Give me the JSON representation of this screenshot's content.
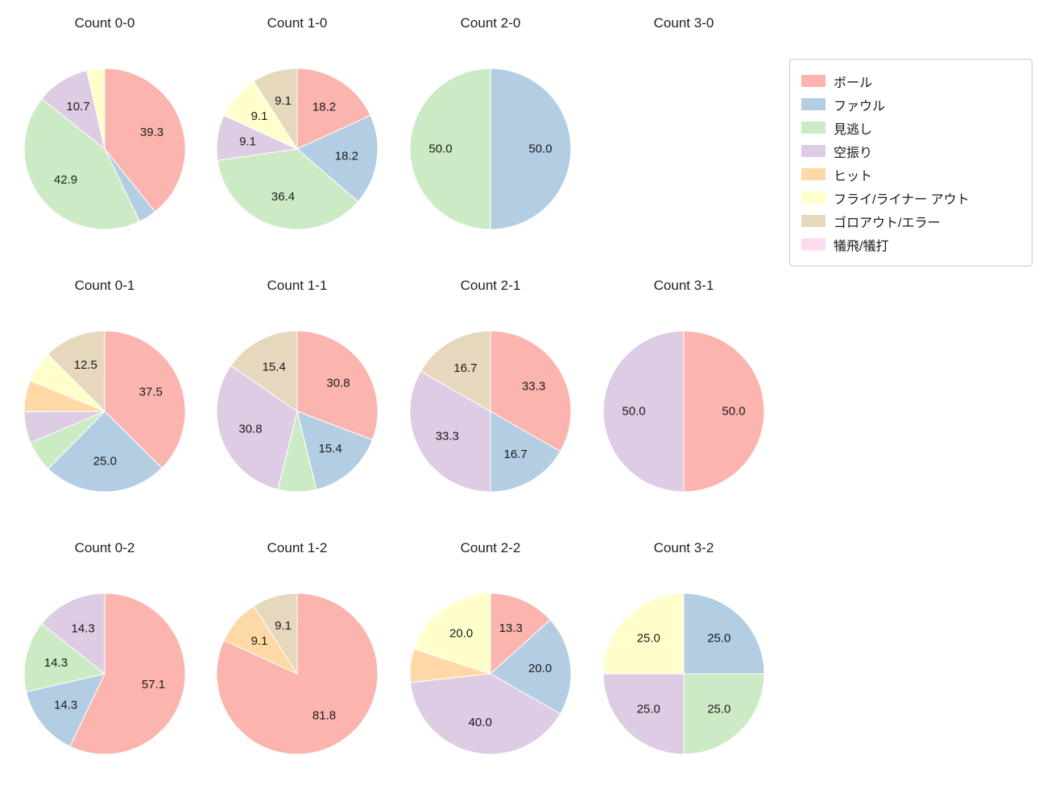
{
  "legend": {
    "items": [
      {
        "label": "ボール",
        "color": "#fbb4ae"
      },
      {
        "label": "ファウル",
        "color": "#b3cde3"
      },
      {
        "label": "見逃し",
        "color": "#ccebc5"
      },
      {
        "label": "空振り",
        "color": "#decbe4"
      },
      {
        "label": "ヒット",
        "color": "#fed9a6"
      },
      {
        "label": "フライ/ライナー アウト",
        "color": "#ffffcc"
      },
      {
        "label": "ゴロアウト/エラー",
        "color": "#e5d8bd"
      },
      {
        "label": "犠飛/犠打",
        "color": "#fddaec"
      }
    ]
  },
  "chart_data": [
    {
      "type": "pie",
      "title": "Count 0-0",
      "slices": [
        {
          "category": "ボール",
          "pct": 39.3,
          "label": "39.3"
        },
        {
          "category": "ファウル",
          "pct": 3.6,
          "label": ""
        },
        {
          "category": "見逃し",
          "pct": 42.9,
          "label": "42.9"
        },
        {
          "category": "空振り",
          "pct": 10.7,
          "label": "10.7"
        },
        {
          "category": "フライ/ライナー アウト",
          "pct": 3.6,
          "label": ""
        }
      ]
    },
    {
      "type": "pie",
      "title": "Count 1-0",
      "slices": [
        {
          "category": "ボール",
          "pct": 18.2,
          "label": "18.2"
        },
        {
          "category": "ファウル",
          "pct": 18.2,
          "label": "18.2"
        },
        {
          "category": "見逃し",
          "pct": 36.4,
          "label": "36.4"
        },
        {
          "category": "空振り",
          "pct": 9.1,
          "label": "9.1"
        },
        {
          "category": "フライ/ライナー アウト",
          "pct": 9.1,
          "label": "9.1"
        },
        {
          "category": "ゴロアウト/エラー",
          "pct": 9.1,
          "label": "9.1"
        }
      ]
    },
    {
      "type": "pie",
      "title": "Count 2-0",
      "slices": [
        {
          "category": "ファウル",
          "pct": 50.0,
          "label": "50.0"
        },
        {
          "category": "見逃し",
          "pct": 50.0,
          "label": "50.0"
        }
      ]
    },
    {
      "type": "pie",
      "title": "Count 3-0",
      "slices": []
    },
    {
      "type": "pie",
      "title": "Count 0-1",
      "slices": [
        {
          "category": "ボール",
          "pct": 37.5,
          "label": "37.5"
        },
        {
          "category": "ファウル",
          "pct": 25.0,
          "label": "25.0"
        },
        {
          "category": "見逃し",
          "pct": 6.3,
          "label": ""
        },
        {
          "category": "空振り",
          "pct": 6.3,
          "label": ""
        },
        {
          "category": "ヒット",
          "pct": 6.3,
          "label": ""
        },
        {
          "category": "フライ/ライナー アウト",
          "pct": 6.3,
          "label": ""
        },
        {
          "category": "ゴロアウト/エラー",
          "pct": 12.5,
          "label": "12.5"
        }
      ]
    },
    {
      "type": "pie",
      "title": "Count 1-1",
      "slices": [
        {
          "category": "ボール",
          "pct": 30.8,
          "label": "30.8"
        },
        {
          "category": "ファウル",
          "pct": 15.4,
          "label": "15.4"
        },
        {
          "category": "見逃し",
          "pct": 7.7,
          "label": ""
        },
        {
          "category": "空振り",
          "pct": 30.8,
          "label": "30.8"
        },
        {
          "category": "ゴロアウト/エラー",
          "pct": 15.4,
          "label": "15.4"
        }
      ]
    },
    {
      "type": "pie",
      "title": "Count 2-1",
      "slices": [
        {
          "category": "ボール",
          "pct": 33.3,
          "label": "33.3"
        },
        {
          "category": "ファウル",
          "pct": 16.7,
          "label": "16.7"
        },
        {
          "category": "空振り",
          "pct": 33.3,
          "label": "33.3"
        },
        {
          "category": "ゴロアウト/エラー",
          "pct": 16.7,
          "label": "16.7"
        }
      ]
    },
    {
      "type": "pie",
      "title": "Count 3-1",
      "slices": [
        {
          "category": "ボール",
          "pct": 50.0,
          "label": "50.0"
        },
        {
          "category": "空振り",
          "pct": 50.0,
          "label": "50.0"
        }
      ]
    },
    {
      "type": "pie",
      "title": "Count 0-2",
      "slices": [
        {
          "category": "ボール",
          "pct": 57.1,
          "label": "57.1"
        },
        {
          "category": "ファウル",
          "pct": 14.3,
          "label": "14.3"
        },
        {
          "category": "見逃し",
          "pct": 14.3,
          "label": "14.3"
        },
        {
          "category": "空振り",
          "pct": 14.3,
          "label": "14.3"
        }
      ]
    },
    {
      "type": "pie",
      "title": "Count 1-2",
      "slices": [
        {
          "category": "ボール",
          "pct": 81.8,
          "label": "81.8"
        },
        {
          "category": "ヒット",
          "pct": 9.1,
          "label": "9.1"
        },
        {
          "category": "ゴロアウト/エラー",
          "pct": 9.1,
          "label": "9.1"
        }
      ]
    },
    {
      "type": "pie",
      "title": "Count 2-2",
      "slices": [
        {
          "category": "ボール",
          "pct": 13.3,
          "label": "13.3"
        },
        {
          "category": "ファウル",
          "pct": 20.0,
          "label": "20.0"
        },
        {
          "category": "空振り",
          "pct": 40.0,
          "label": "40.0"
        },
        {
          "category": "ヒット",
          "pct": 6.7,
          "label": ""
        },
        {
          "category": "フライ/ライナー アウト",
          "pct": 20.0,
          "label": "20.0"
        }
      ]
    },
    {
      "type": "pie",
      "title": "Count 3-2",
      "slices": [
        {
          "category": "ファウル",
          "pct": 25.0,
          "label": "25.0"
        },
        {
          "category": "見逃し",
          "pct": 25.0,
          "label": "25.0"
        },
        {
          "category": "空振り",
          "pct": 25.0,
          "label": "25.0"
        },
        {
          "category": "フライ/ライナー アウト",
          "pct": 25.0,
          "label": "25.0"
        }
      ]
    }
  ]
}
